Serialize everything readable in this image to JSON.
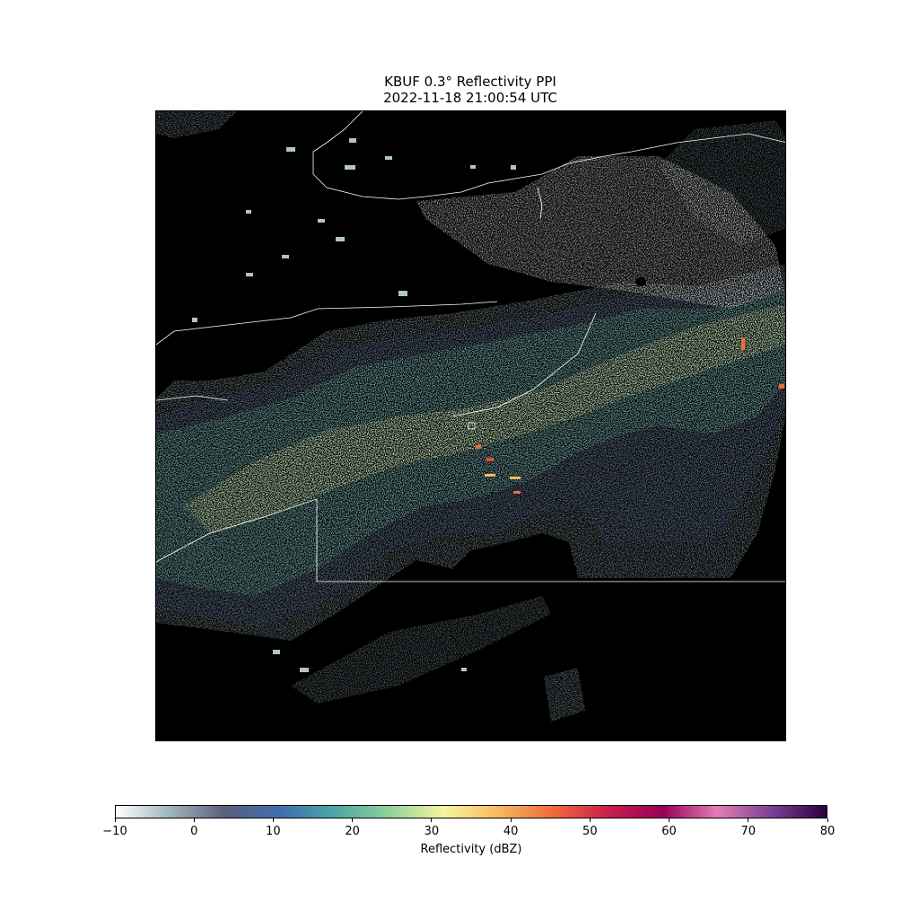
{
  "figure": {
    "title_line1": "KBUF 0.3° Reflectivity PPI",
    "title_line2": "2022-11-18 21:00:54 UTC"
  },
  "colorbar": {
    "label": "Reflectivity (dBZ)",
    "ticks": [
      "−10",
      "0",
      "10",
      "20",
      "30",
      "40",
      "50",
      "60",
      "70",
      "80"
    ],
    "range": [
      -10,
      80
    ],
    "colors": [
      "#ffffff",
      "#9fb4bd",
      "#5a5f7a",
      "#3d6fb0",
      "#4aa6a6",
      "#8fd19a",
      "#f6f5a0",
      "#f8b860",
      "#ef6a3a",
      "#c9204d",
      "#990056",
      "#e47cb3",
      "#7a3f95",
      "#2a0040"
    ]
  },
  "map": {
    "background": "#000000",
    "boundary_color": "#ffffff"
  }
}
